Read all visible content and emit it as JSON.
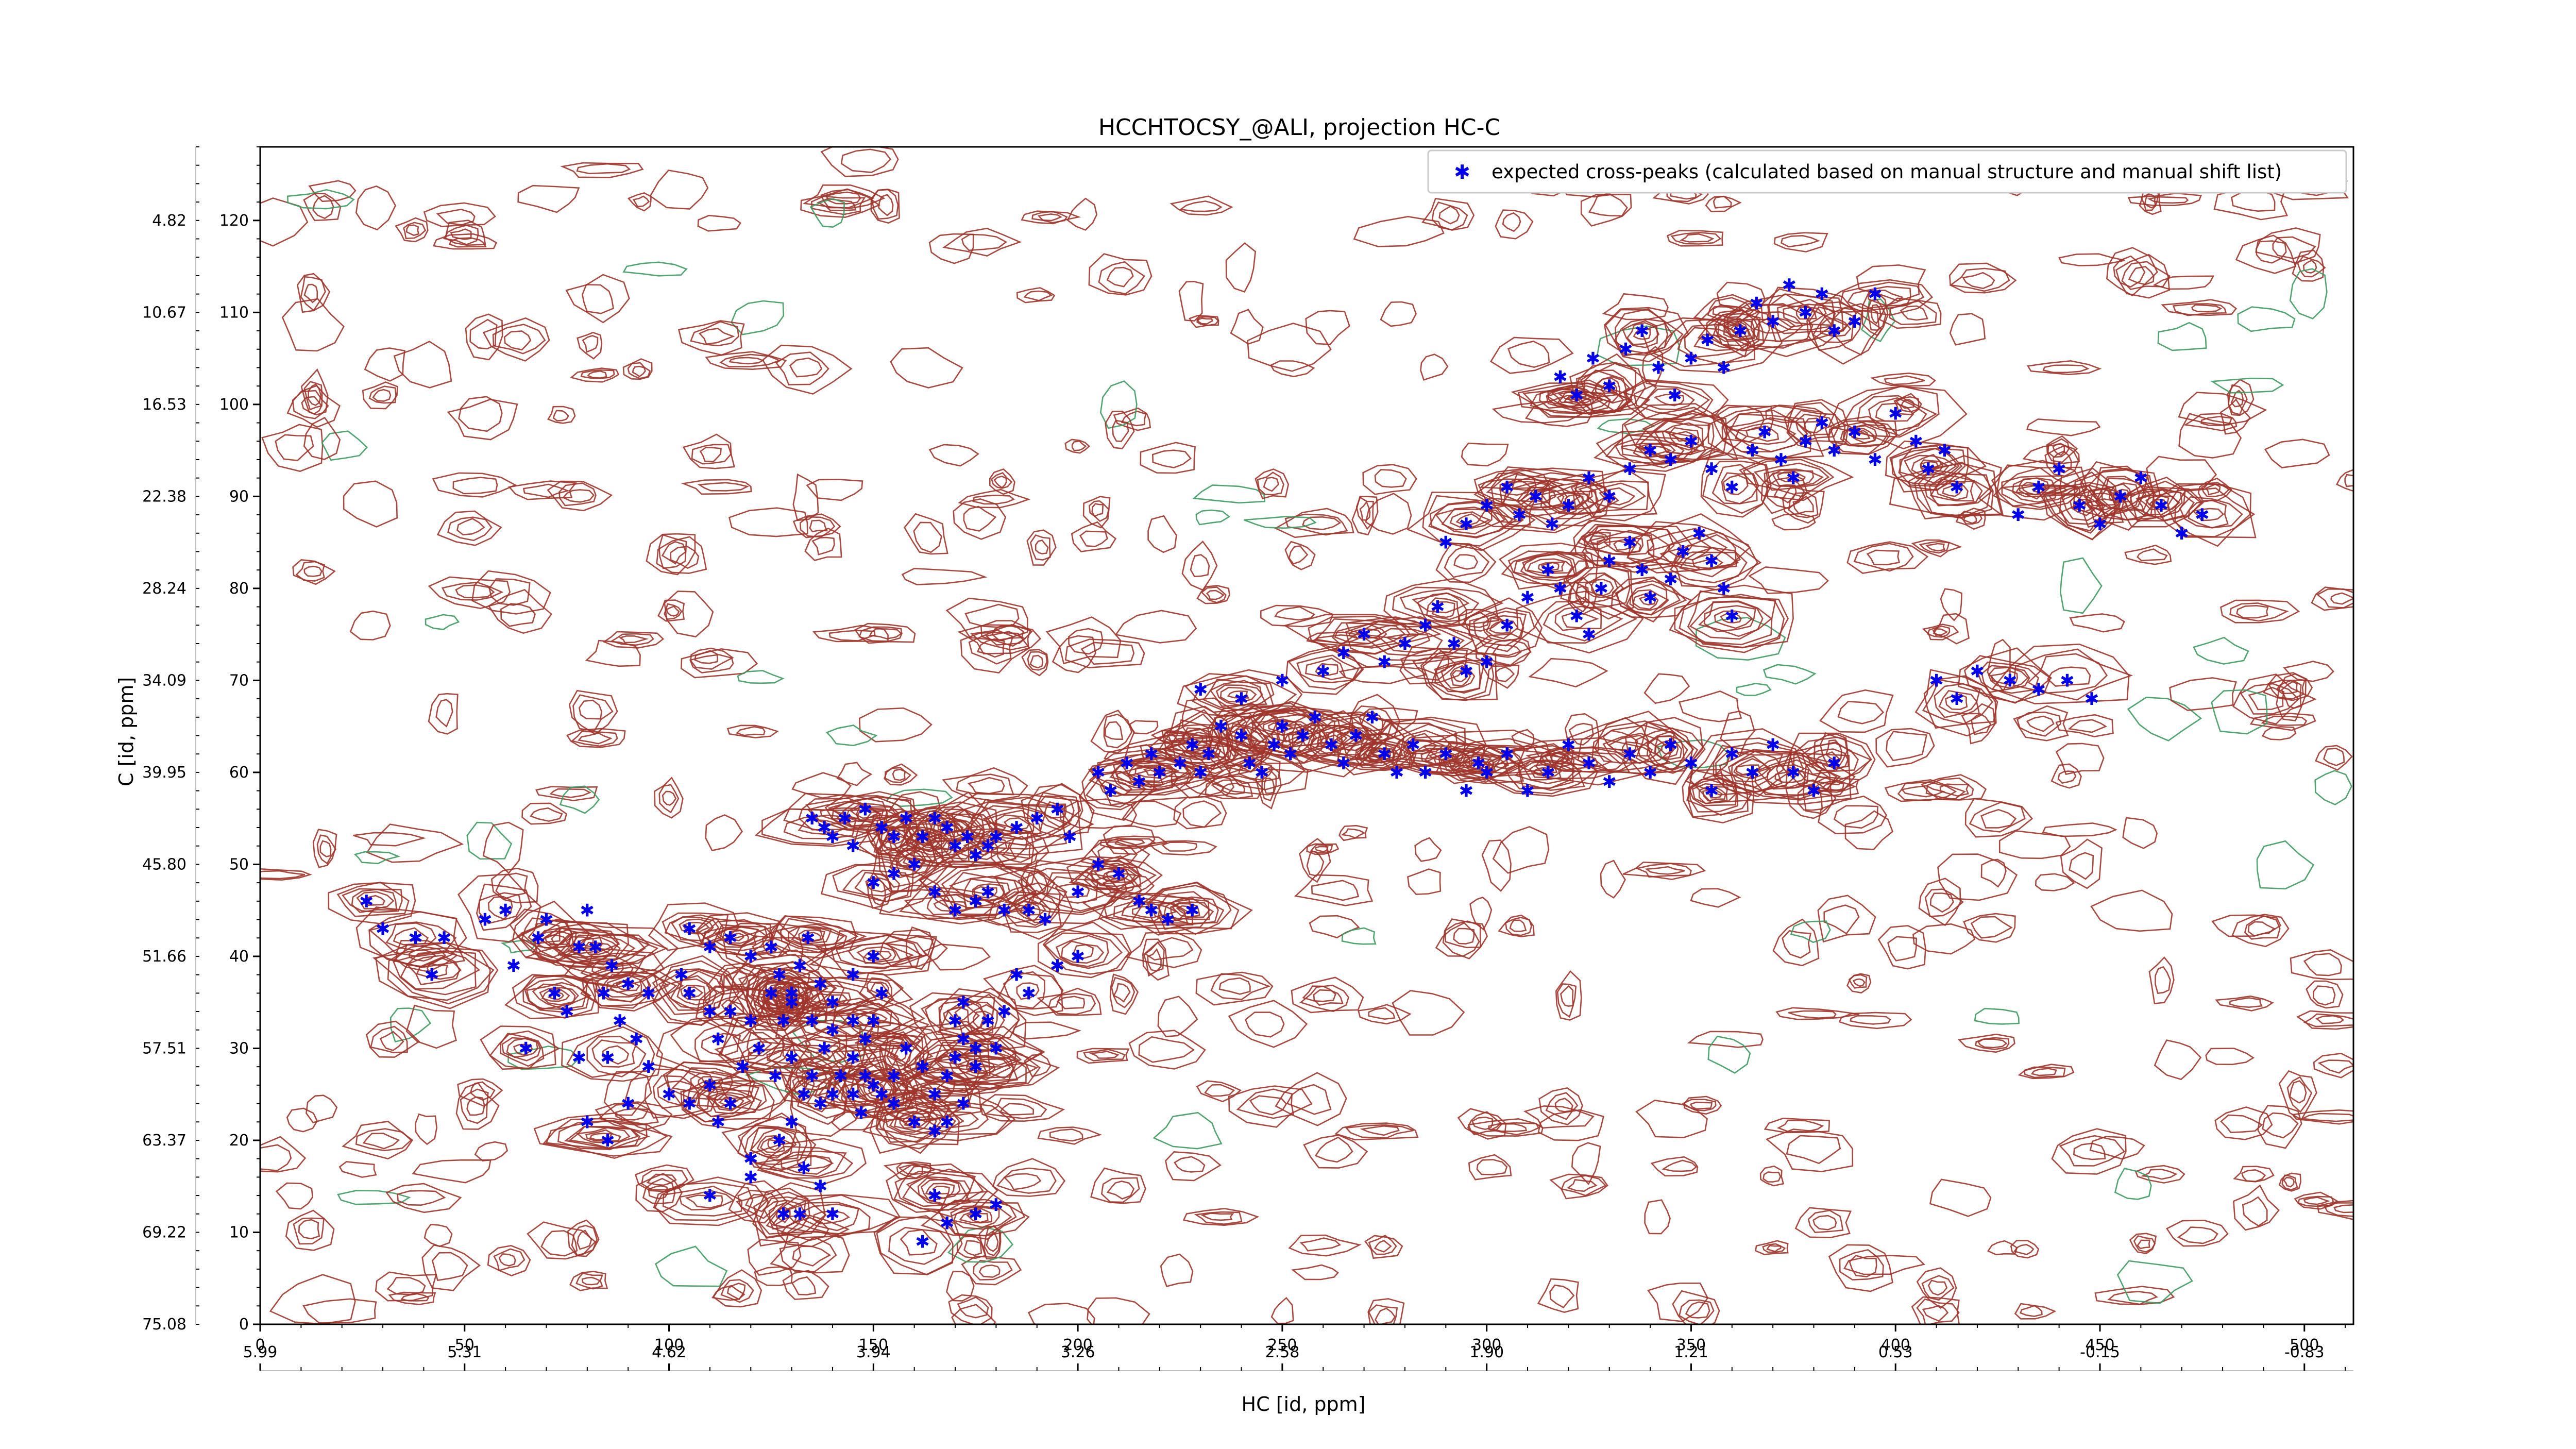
{
  "chart_data": {
    "type": "scatter",
    "title": "HCCHTOCSY_@ALI, projection HC-C",
    "xlabel": "HC [id, ppm]",
    "ylabel": "C [id, ppm]",
    "x_index_range": [
      0,
      512
    ],
    "y_index_range": [
      0,
      128
    ],
    "x_index_ticks": [
      "0",
      "50",
      "100",
      "150",
      "200",
      "250",
      "300",
      "350",
      "400",
      "450",
      "500"
    ],
    "x_ppm_ticks": [
      "5.99",
      "5.31",
      "4.62",
      "3.94",
      "3.26",
      "2.58",
      "1.90",
      "1.21",
      "0.53",
      "-0.15",
      "-0.83"
    ],
    "y_index_ticks": [
      "0",
      "10",
      "20",
      "30",
      "40",
      "50",
      "60",
      "70",
      "80",
      "90",
      "100",
      "110",
      "120"
    ],
    "y_ppm_ticks": [
      "75.08",
      "69.22",
      "63.37",
      "57.51",
      "51.66",
      "45.80",
      "39.95",
      "34.09",
      "28.24",
      "22.38",
      "16.53",
      "10.67",
      "4.82"
    ],
    "legend": {
      "position": "top-right",
      "label": "expected cross-peaks (calculated based on manual structure and manual shift list)"
    },
    "colors": {
      "points": "#0000ee",
      "positive_contours": "#a0342a",
      "negative_contours": "#3c9a60"
    },
    "series": [
      {
        "name": "expected cross-peaks (calculated based on manual structure and manual shift list)",
        "points": [
          [
            26,
            46
          ],
          [
            30,
            43
          ],
          [
            38,
            42
          ],
          [
            45,
            42
          ],
          [
            42,
            38
          ],
          [
            55,
            44
          ],
          [
            60,
            45
          ],
          [
            62,
            39
          ],
          [
            68,
            42
          ],
          [
            70,
            44
          ],
          [
            72,
            36
          ],
          [
            75,
            34
          ],
          [
            78,
            41
          ],
          [
            80,
            45
          ],
          [
            82,
            41
          ],
          [
            84,
            36
          ],
          [
            86,
            39
          ],
          [
            88,
            33
          ],
          [
            90,
            37
          ],
          [
            95,
            36
          ],
          [
            65,
            30
          ],
          [
            78,
            29
          ],
          [
            85,
            29
          ],
          [
            92,
            31
          ],
          [
            105,
            43
          ],
          [
            110,
            41
          ],
          [
            115,
            42
          ],
          [
            120,
            40
          ],
          [
            125,
            41
          ],
          [
            127,
            38
          ],
          [
            130,
            36
          ],
          [
            132,
            39
          ],
          [
            134,
            42
          ],
          [
            137,
            37
          ],
          [
            140,
            35
          ],
          [
            145,
            38
          ],
          [
            150,
            40
          ],
          [
            152,
            36
          ],
          [
            150,
            33
          ],
          [
            148,
            31
          ],
          [
            145,
            33
          ],
          [
            140,
            32
          ],
          [
            138,
            30
          ],
          [
            135,
            33
          ],
          [
            130,
            35
          ],
          [
            128,
            33
          ],
          [
            125,
            36
          ],
          [
            120,
            33
          ],
          [
            115,
            34
          ],
          [
            110,
            34
          ],
          [
            105,
            36
          ],
          [
            103,
            38
          ],
          [
            112,
            31
          ],
          [
            118,
            28
          ],
          [
            122,
            30
          ],
          [
            126,
            27
          ],
          [
            130,
            29
          ],
          [
            133,
            25
          ],
          [
            137,
            24
          ],
          [
            142,
            27
          ],
          [
            145,
            29
          ],
          [
            148,
            27
          ],
          [
            152,
            25
          ],
          [
            155,
            27
          ],
          [
            158,
            30
          ],
          [
            162,
            28
          ],
          [
            165,
            25
          ],
          [
            168,
            27
          ],
          [
            170,
            29
          ],
          [
            172,
            31
          ],
          [
            175,
            28
          ],
          [
            172,
            24
          ],
          [
            168,
            22
          ],
          [
            165,
            21
          ],
          [
            160,
            22
          ],
          [
            155,
            24
          ],
          [
            150,
            26
          ],
          [
            147,
            23
          ],
          [
            145,
            25
          ],
          [
            140,
            25
          ],
          [
            135,
            27
          ],
          [
            130,
            22
          ],
          [
            127,
            20
          ],
          [
            120,
            18
          ],
          [
            115,
            24
          ],
          [
            112,
            22
          ],
          [
            110,
            26
          ],
          [
            105,
            24
          ],
          [
            133,
            17
          ],
          [
            137,
            15
          ],
          [
            140,
            12
          ],
          [
            132,
            12
          ],
          [
            162,
            9
          ],
          [
            168,
            11
          ],
          [
            175,
            12
          ],
          [
            180,
            13
          ],
          [
            165,
            14
          ],
          [
            135,
            55
          ],
          [
            138,
            54
          ],
          [
            140,
            53
          ],
          [
            143,
            55
          ],
          [
            145,
            52
          ],
          [
            148,
            56
          ],
          [
            152,
            54
          ],
          [
            155,
            53
          ],
          [
            158,
            55
          ],
          [
            162,
            53
          ],
          [
            165,
            55
          ],
          [
            168,
            54
          ],
          [
            170,
            52
          ],
          [
            173,
            53
          ],
          [
            175,
            51
          ],
          [
            178,
            52
          ],
          [
            180,
            53
          ],
          [
            185,
            54
          ],
          [
            190,
            55
          ],
          [
            195,
            56
          ],
          [
            198,
            53
          ],
          [
            150,
            48
          ],
          [
            155,
            49
          ],
          [
            160,
            50
          ],
          [
            165,
            47
          ],
          [
            170,
            45
          ],
          [
            175,
            46
          ],
          [
            178,
            47
          ],
          [
            182,
            45
          ],
          [
            188,
            45
          ],
          [
            192,
            44
          ],
          [
            200,
            47
          ],
          [
            205,
            50
          ],
          [
            210,
            49
          ],
          [
            215,
            46
          ],
          [
            218,
            45
          ],
          [
            222,
            44
          ],
          [
            228,
            45
          ],
          [
            195,
            39
          ],
          [
            200,
            40
          ],
          [
            185,
            38
          ],
          [
            188,
            36
          ],
          [
            182,
            34
          ],
          [
            178,
            33
          ],
          [
            175,
            30
          ],
          [
            180,
            30
          ],
          [
            172,
            35
          ],
          [
            170,
            33
          ],
          [
            205,
            60
          ],
          [
            208,
            58
          ],
          [
            212,
            61
          ],
          [
            215,
            59
          ],
          [
            218,
            62
          ],
          [
            220,
            60
          ],
          [
            225,
            61
          ],
          [
            228,
            63
          ],
          [
            230,
            60
          ],
          [
            232,
            62
          ],
          [
            235,
            65
          ],
          [
            240,
            64
          ],
          [
            242,
            61
          ],
          [
            245,
            60
          ],
          [
            248,
            63
          ],
          [
            250,
            65
          ],
          [
            252,
            62
          ],
          [
            255,
            64
          ],
          [
            258,
            66
          ],
          [
            262,
            63
          ],
          [
            265,
            61
          ],
          [
            268,
            64
          ],
          [
            272,
            66
          ],
          [
            275,
            62
          ],
          [
            278,
            60
          ],
          [
            282,
            63
          ],
          [
            285,
            60
          ],
          [
            290,
            62
          ],
          [
            295,
            58
          ],
          [
            298,
            61
          ],
          [
            230,
            69
          ],
          [
            240,
            68
          ],
          [
            250,
            70
          ],
          [
            260,
            71
          ],
          [
            265,
            73
          ],
          [
            270,
            75
          ],
          [
            275,
            72
          ],
          [
            280,
            74
          ],
          [
            285,
            76
          ],
          [
            288,
            78
          ],
          [
            292,
            74
          ],
          [
            295,
            71
          ],
          [
            300,
            72
          ],
          [
            305,
            76
          ],
          [
            310,
            79
          ],
          [
            315,
            82
          ],
          [
            318,
            80
          ],
          [
            322,
            77
          ],
          [
            325,
            75
          ],
          [
            328,
            80
          ],
          [
            330,
            83
          ],
          [
            335,
            85
          ],
          [
            338,
            82
          ],
          [
            340,
            79
          ],
          [
            345,
            81
          ],
          [
            348,
            84
          ],
          [
            352,
            86
          ],
          [
            355,
            83
          ],
          [
            358,
            80
          ],
          [
            360,
            77
          ],
          [
            290,
            85
          ],
          [
            295,
            87
          ],
          [
            300,
            89
          ],
          [
            305,
            91
          ],
          [
            308,
            88
          ],
          [
            312,
            90
          ],
          [
            316,
            87
          ],
          [
            320,
            89
          ],
          [
            325,
            92
          ],
          [
            330,
            90
          ],
          [
            335,
            93
          ],
          [
            340,
            95
          ],
          [
            345,
            94
          ],
          [
            350,
            96
          ],
          [
            355,
            93
          ],
          [
            360,
            91
          ],
          [
            365,
            95
          ],
          [
            368,
            97
          ],
          [
            372,
            94
          ],
          [
            375,
            92
          ],
          [
            378,
            96
          ],
          [
            382,
            98
          ],
          [
            385,
            95
          ],
          [
            390,
            97
          ],
          [
            395,
            94
          ],
          [
            400,
            99
          ],
          [
            405,
            96
          ],
          [
            408,
            93
          ],
          [
            412,
            95
          ],
          [
            415,
            91
          ],
          [
            318,
            103
          ],
          [
            322,
            101
          ],
          [
            326,
            105
          ],
          [
            330,
            102
          ],
          [
            334,
            106
          ],
          [
            338,
            108
          ],
          [
            342,
            104
          ],
          [
            346,
            101
          ],
          [
            350,
            105
          ],
          [
            354,
            107
          ],
          [
            358,
            104
          ],
          [
            362,
            108
          ],
          [
            366,
            111
          ],
          [
            370,
            109
          ],
          [
            374,
            113
          ],
          [
            378,
            110
          ],
          [
            382,
            112
          ],
          [
            385,
            108
          ],
          [
            390,
            109
          ],
          [
            395,
            112
          ],
          [
            300,
            60
          ],
          [
            305,
            62
          ],
          [
            310,
            58
          ],
          [
            315,
            60
          ],
          [
            320,
            63
          ],
          [
            325,
            61
          ],
          [
            330,
            59
          ],
          [
            335,
            62
          ],
          [
            340,
            60
          ],
          [
            345,
            63
          ],
          [
            350,
            61
          ],
          [
            355,
            58
          ],
          [
            360,
            62
          ],
          [
            365,
            60
          ],
          [
            370,
            63
          ],
          [
            375,
            60
          ],
          [
            380,
            58
          ],
          [
            385,
            61
          ],
          [
            430,
            88
          ],
          [
            435,
            91
          ],
          [
            440,
            93
          ],
          [
            445,
            89
          ],
          [
            450,
            87
          ],
          [
            455,
            90
          ],
          [
            460,
            92
          ],
          [
            465,
            89
          ],
          [
            470,
            86
          ],
          [
            475,
            88
          ],
          [
            410,
            70
          ],
          [
            415,
            68
          ],
          [
            420,
            71
          ],
          [
            428,
            70
          ],
          [
            435,
            69
          ],
          [
            442,
            70
          ],
          [
            448,
            68
          ],
          [
            110,
            14
          ],
          [
            120,
            16
          ],
          [
            128,
            12
          ],
          [
            95,
            28
          ],
          [
            100,
            25
          ],
          [
            90,
            24
          ],
          [
            85,
            20
          ],
          [
            80,
            22
          ]
        ]
      }
    ]
  }
}
